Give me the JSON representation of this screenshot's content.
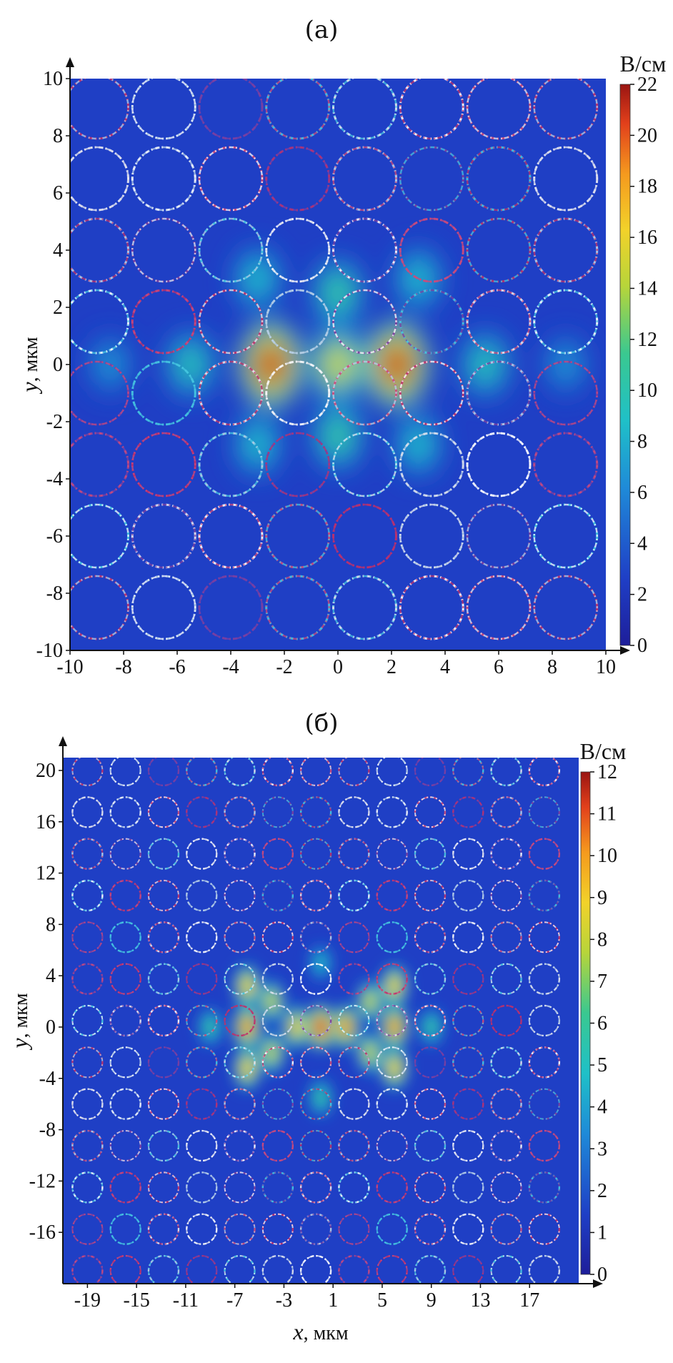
{
  "chart_data": [
    {
      "type": "heatmap",
      "title": "(а)",
      "xlim": [
        -10,
        10
      ],
      "ylim": [
        -10,
        10
      ],
      "xticks": [
        -10,
        -8,
        -6,
        -4,
        -2,
        0,
        2,
        4,
        6,
        8,
        10
      ],
      "yticks": [
        10,
        8,
        6,
        4,
        2,
        0,
        -2,
        -4,
        -6,
        -8,
        -10
      ],
      "ylabel_italic": "y",
      "ylabel_unit": ", мкм",
      "colorbar": {
        "unit": "В/см",
        "range": [
          0,
          22
        ],
        "ticks": [
          0,
          2,
          4,
          6,
          8,
          10,
          12,
          14,
          16,
          18,
          20,
          22
        ]
      },
      "lattice": {
        "x_centers": [
          -9,
          -6.5,
          -4,
          -1.5,
          1,
          3.5,
          6,
          8.5
        ],
        "y_centers": [
          9,
          6.5,
          4,
          1.5,
          -1,
          -3.5,
          -6,
          -8.5
        ]
      },
      "hotspots": [
        {
          "x": -2.5,
          "y": 0,
          "value": 21
        },
        {
          "x": 2.2,
          "y": 0,
          "value": 21
        },
        {
          "x": 0,
          "y": 0,
          "value": 15
        },
        {
          "x": 0,
          "y": 2.5,
          "value": 11
        },
        {
          "x": 0,
          "y": -2.5,
          "value": 11
        },
        {
          "x": -5.5,
          "y": 0,
          "value": 10
        },
        {
          "x": 5.5,
          "y": 0,
          "value": 10
        },
        {
          "x": -3,
          "y": 3,
          "value": 9
        },
        {
          "x": 3,
          "y": 3,
          "value": 9
        },
        {
          "x": -3,
          "y": -2.8,
          "value": 9
        },
        {
          "x": 3,
          "y": -2.8,
          "value": 9
        },
        {
          "x": -8.5,
          "y": 0,
          "value": 7
        },
        {
          "x": 8.5,
          "y": 0,
          "value": 7
        }
      ]
    },
    {
      "type": "heatmap",
      "title": "(б)",
      "xlim": [
        -21,
        21
      ],
      "ylim": [
        -20,
        21
      ],
      "xticks": [
        -19,
        -15,
        -11,
        -7,
        -3,
        1,
        5,
        9,
        13,
        17
      ],
      "yticks": [
        20,
        16,
        12,
        8,
        4,
        0,
        -4,
        -8,
        -12,
        -16
      ],
      "xlabel_italic": "x",
      "xlabel_unit": ", мкм",
      "ylabel_italic": "y",
      "ylabel_unit": ", мкм",
      "colorbar": {
        "unit": "В/см",
        "range": [
          0,
          12
        ],
        "ticks": [
          0,
          1,
          2,
          3,
          4,
          5,
          6,
          7,
          8,
          9,
          10,
          11,
          12
        ]
      },
      "lattice": {
        "x_range": [
          -19,
          19
        ],
        "x_step": 3.1,
        "y_range": [
          -19,
          20
        ],
        "y_step": 3.25
      },
      "hotspots": [
        {
          "x": -6,
          "y": 3.2,
          "value": 9
        },
        {
          "x": -6,
          "y": 0,
          "value": 10
        },
        {
          "x": -6,
          "y": -3.2,
          "value": 9
        },
        {
          "x": -4,
          "y": 2,
          "value": 8
        },
        {
          "x": -4,
          "y": -2,
          "value": 8
        },
        {
          "x": -2,
          "y": 0,
          "value": 9
        },
        {
          "x": 0,
          "y": 0,
          "value": 11
        },
        {
          "x": 2,
          "y": 0,
          "value": 10
        },
        {
          "x": 4,
          "y": 2,
          "value": 8
        },
        {
          "x": 4,
          "y": -2,
          "value": 8
        },
        {
          "x": 6,
          "y": 3.2,
          "value": 9
        },
        {
          "x": 6,
          "y": 0,
          "value": 10
        },
        {
          "x": 6,
          "y": -3.2,
          "value": 9
        },
        {
          "x": -9,
          "y": 0,
          "value": 6
        },
        {
          "x": 9,
          "y": 0,
          "value": 6
        },
        {
          "x": 0,
          "y": 5,
          "value": 5
        },
        {
          "x": 0,
          "y": -5.5,
          "value": 6
        }
      ]
    }
  ]
}
